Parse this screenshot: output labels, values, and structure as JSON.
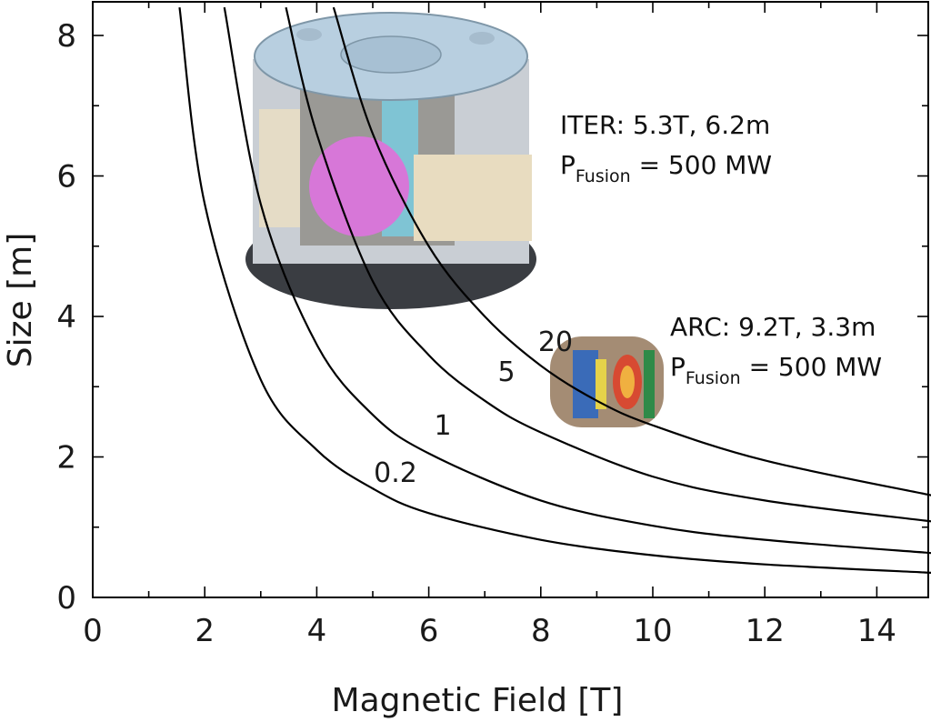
{
  "chart_data": {
    "type": "line",
    "title": "",
    "xlabel": "Magnetic Field [T]",
    "ylabel": "Size [m]",
    "xlim": [
      0,
      15
    ],
    "ylim": [
      0,
      8.5
    ],
    "x_ticks": [
      "0",
      "2",
      "4",
      "6",
      "8",
      "10",
      "12",
      "14"
    ],
    "y_ticks": [
      "0",
      "2",
      "4",
      "6",
      "8"
    ],
    "x_tick_values": [
      0,
      2,
      4,
      6,
      8,
      10,
      12,
      14
    ],
    "y_tick_values": [
      0,
      2,
      4,
      6,
      8
    ],
    "grid": false,
    "series": [
      {
        "name": "0.2",
        "x": [
          1.55,
          2,
          3,
          4,
          5,
          6,
          8,
          10,
          12,
          15
        ],
        "y": [
          8.4,
          5.6,
          3.1,
          2.1,
          1.55,
          1.2,
          0.82,
          0.6,
          0.47,
          0.35
        ]
      },
      {
        "name": "1",
        "x": [
          2.35,
          3,
          4,
          5,
          6,
          8,
          10,
          12,
          15
        ],
        "y": [
          8.4,
          5.6,
          3.6,
          2.6,
          2.05,
          1.38,
          1.02,
          0.82,
          0.63
        ]
      },
      {
        "name": "5",
        "x": [
          3.45,
          4,
          5,
          6,
          7,
          8,
          10,
          12,
          15
        ],
        "y": [
          8.4,
          6.6,
          4.5,
          3.45,
          2.8,
          2.35,
          1.72,
          1.38,
          1.08
        ]
      },
      {
        "name": "20",
        "x": [
          4.3,
          5,
          6,
          7,
          8,
          9,
          10,
          12,
          15
        ],
        "y": [
          8.4,
          6.6,
          5.0,
          4.0,
          3.3,
          2.8,
          2.45,
          1.95,
          1.45
        ]
      }
    ],
    "annotations": [
      {
        "main": "ITER: 5.3T, 6.2m",
        "p": "P",
        "sub": "Fusion",
        "rest": " = 500 MW",
        "x": 5.3,
        "y": 6.2
      },
      {
        "main": "ARC: 9.2T, 3.3m",
        "p": "P",
        "sub": "Fusion",
        "rest": " = 500 MW",
        "x": 9.2,
        "y": 3.3
      }
    ]
  }
}
